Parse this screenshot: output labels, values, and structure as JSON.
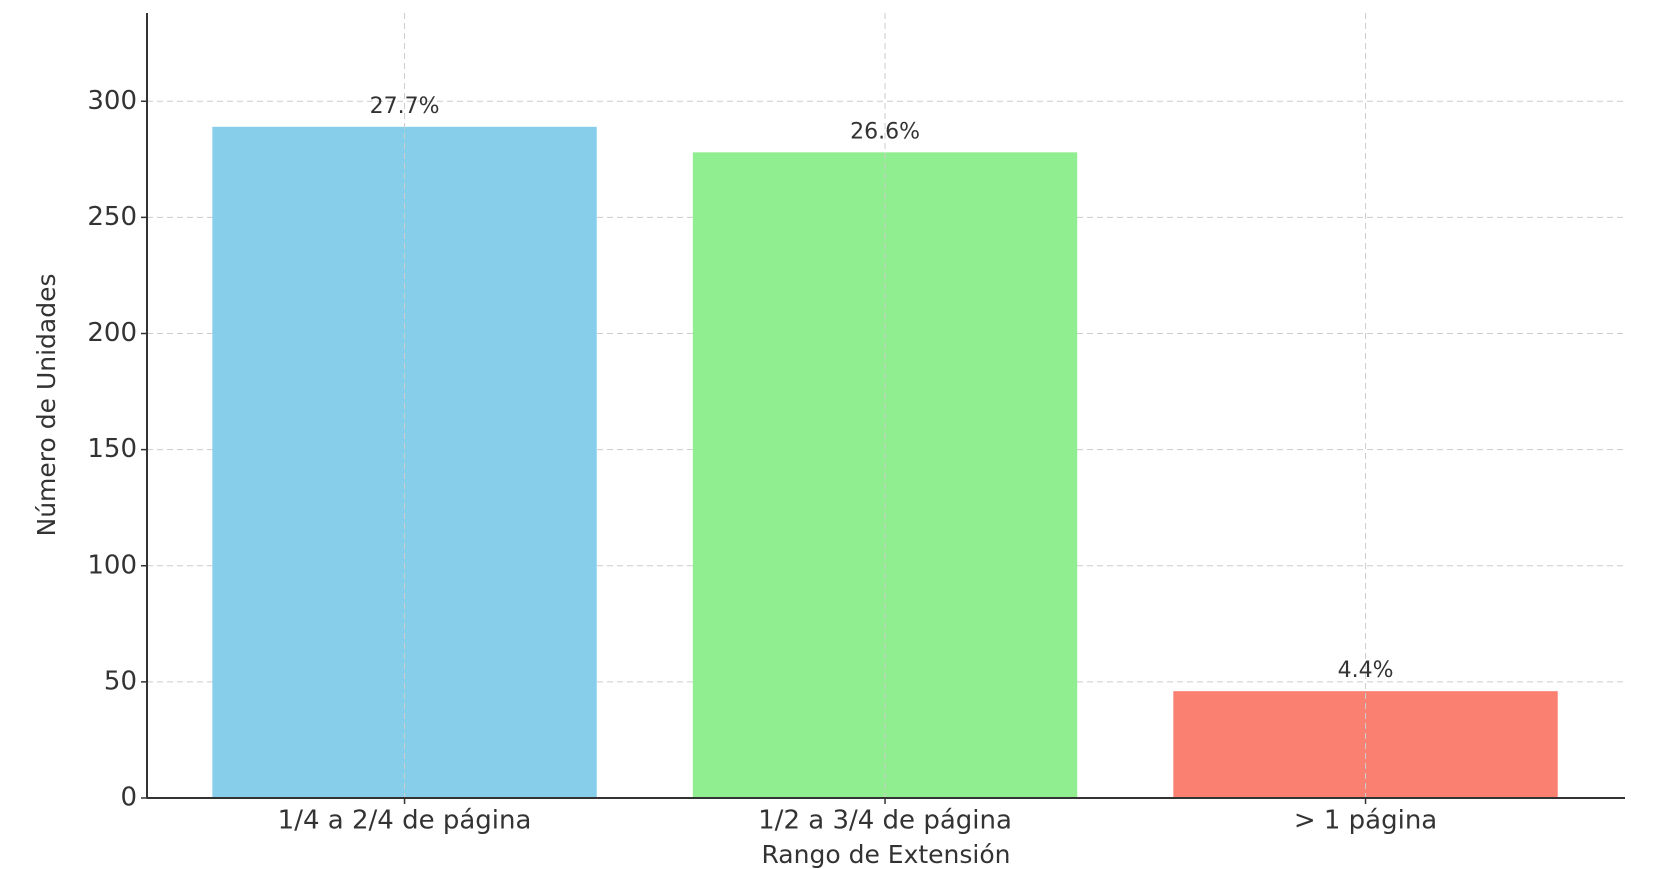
{
  "chart_data": {
    "type": "bar",
    "categories": [
      "1/4 a 2/4 de página",
      "1/2 a 3/4 de página",
      "> 1 página"
    ],
    "values": [
      289,
      278,
      46
    ],
    "annotations": [
      "27.7%",
      "26.6%",
      "4.4%"
    ],
    "colors": [
      "#87ceeb",
      "#90ee90",
      "#fa8072"
    ],
    "xlabel": "Rango de Extensión",
    "ylabel": "Número de Unidades",
    "ylim": [
      0,
      338
    ],
    "yticks": [
      0,
      50,
      100,
      150,
      200,
      250,
      300
    ],
    "grid": true
  }
}
